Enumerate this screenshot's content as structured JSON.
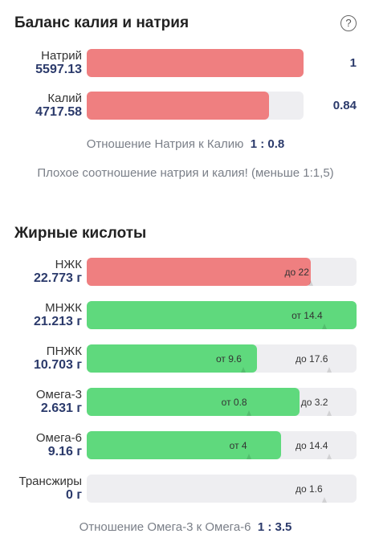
{
  "balance": {
    "title": "Баланс калия и натрия",
    "help_icon": "?",
    "items": [
      {
        "name": "Натрий",
        "value": "5597.13",
        "ratio": "1",
        "fill": 1.0
      },
      {
        "name": "Калий",
        "value": "4717.58",
        "ratio": "0.84",
        "fill": 0.84
      }
    ],
    "ratio_label": "Отношение Натрия к Калию",
    "ratio_value": "1 : 0.8",
    "warning": "Плохое соотношение натрия и калия! (меньше 1:1,5)"
  },
  "fats": {
    "title": "Жирные кислоты",
    "items": [
      {
        "name": "НЖК",
        "value": "22.773 г",
        "color": "#ef7f80",
        "fill": 0.83,
        "markers": [
          {
            "text": "до 22",
            "pos": 0.83
          }
        ]
      },
      {
        "name": "МНЖК",
        "value": "21.213 г",
        "color": "#5fd97d",
        "fill": 1.0,
        "markers": [
          {
            "text": "от 14.4",
            "pos": 0.88
          }
        ]
      },
      {
        "name": "ПНЖК",
        "value": "10.703 г",
        "color": "#5fd97d",
        "fill": 0.63,
        "markers": [
          {
            "text": "от 9.6",
            "pos": 0.58
          },
          {
            "text": "до 17.6",
            "pos": 0.9
          }
        ]
      },
      {
        "name": "Омега-3",
        "value": "2.631 г",
        "color": "#5fd97d",
        "fill": 0.79,
        "markers": [
          {
            "text": "от 0.8",
            "pos": 0.6
          },
          {
            "text": "до 3.2",
            "pos": 0.9
          }
        ]
      },
      {
        "name": "Омега-6",
        "value": "9.16 г",
        "color": "#5fd97d",
        "fill": 0.72,
        "markers": [
          {
            "text": "от 4",
            "pos": 0.6
          },
          {
            "text": "до 14.4",
            "pos": 0.9
          }
        ]
      },
      {
        "name": "Трансжиры",
        "value": "0 г",
        "color": "#5fd97d",
        "fill": 0.0,
        "markers": [
          {
            "text": "до 1.6",
            "pos": 0.88
          }
        ]
      }
    ],
    "ratio_label": "Отношение Омега-3 к Омега-6",
    "ratio_value": "1 : 3.5"
  }
}
